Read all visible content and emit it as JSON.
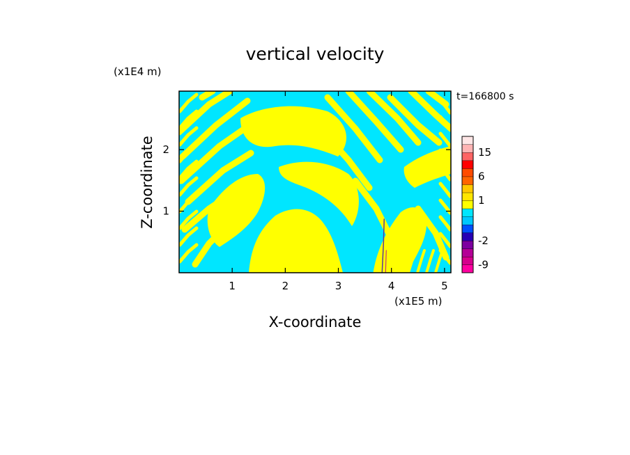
{
  "chart_data": {
    "type": "heatmap",
    "title": "vertical velocity",
    "xlabel": "X-coordinate",
    "ylabel": "Z-coordinate",
    "x_unit": "(x1E5 m)",
    "y_unit": "(x1E4 m)",
    "time_label": "t=166800 s",
    "xlim": [
      0,
      5.12
    ],
    "ylim": [
      0,
      2.95
    ],
    "xticks": [
      1,
      2,
      3,
      4,
      5
    ],
    "yticks": [
      1,
      2
    ],
    "grid": false,
    "colorbar": {
      "levels": [
        -12,
        -9,
        -6,
        -4,
        -2,
        -1,
        -0.5,
        0,
        0.5,
        1,
        2,
        4,
        6,
        9,
        12,
        15,
        20,
        25
      ],
      "colors": [
        "#ff00a0",
        "#d6008c",
        "#b40096",
        "#7d00a0",
        "#2800b4",
        "#0050ff",
        "#00c8ff",
        "#00e6ff",
        "#ffff00",
        "#ffe600",
        "#ffc800",
        "#ff6400",
        "#ff4b00",
        "#ff0000",
        "#ff6464",
        "#ffb4b4",
        "#ffe6e6"
      ],
      "tick_labels": [
        "15",
        "6",
        "1",
        "-2",
        "-9"
      ],
      "tick_values": [
        15,
        6,
        1,
        -2,
        -9
      ]
    },
    "field_colors": {
      "positive": "#ffff00",
      "negative": "#00e6ff"
    }
  }
}
